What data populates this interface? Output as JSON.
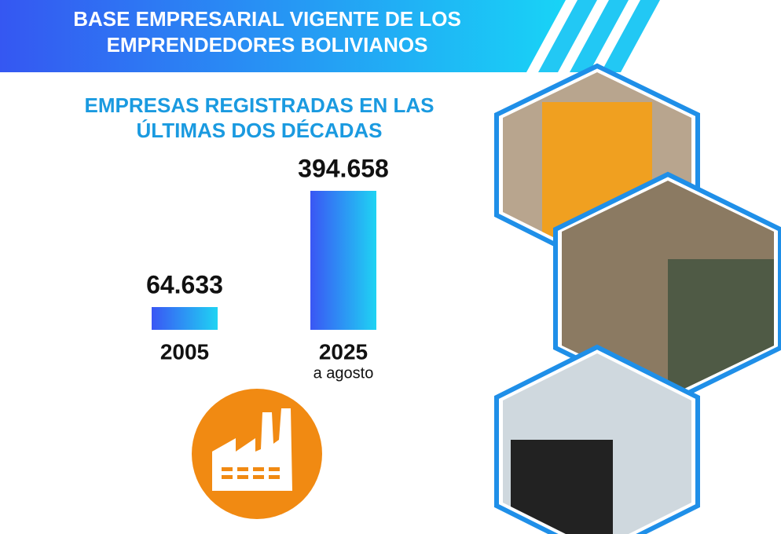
{
  "chart_data": {
    "type": "bar",
    "title": "BASE EMPRESARIAL VIGENTE DE LOS EMPRENDEDORES BOLIVIANOS",
    "subtitle": "EMPRESAS REGISTRADAS EN LAS ÚLTIMAS DOS DÉCADAS",
    "categories": [
      "2005",
      "2025"
    ],
    "values": [
      64633,
      394658
    ],
    "value_labels": [
      "64.633",
      "394.658"
    ],
    "annotation": "a agosto"
  }
}
